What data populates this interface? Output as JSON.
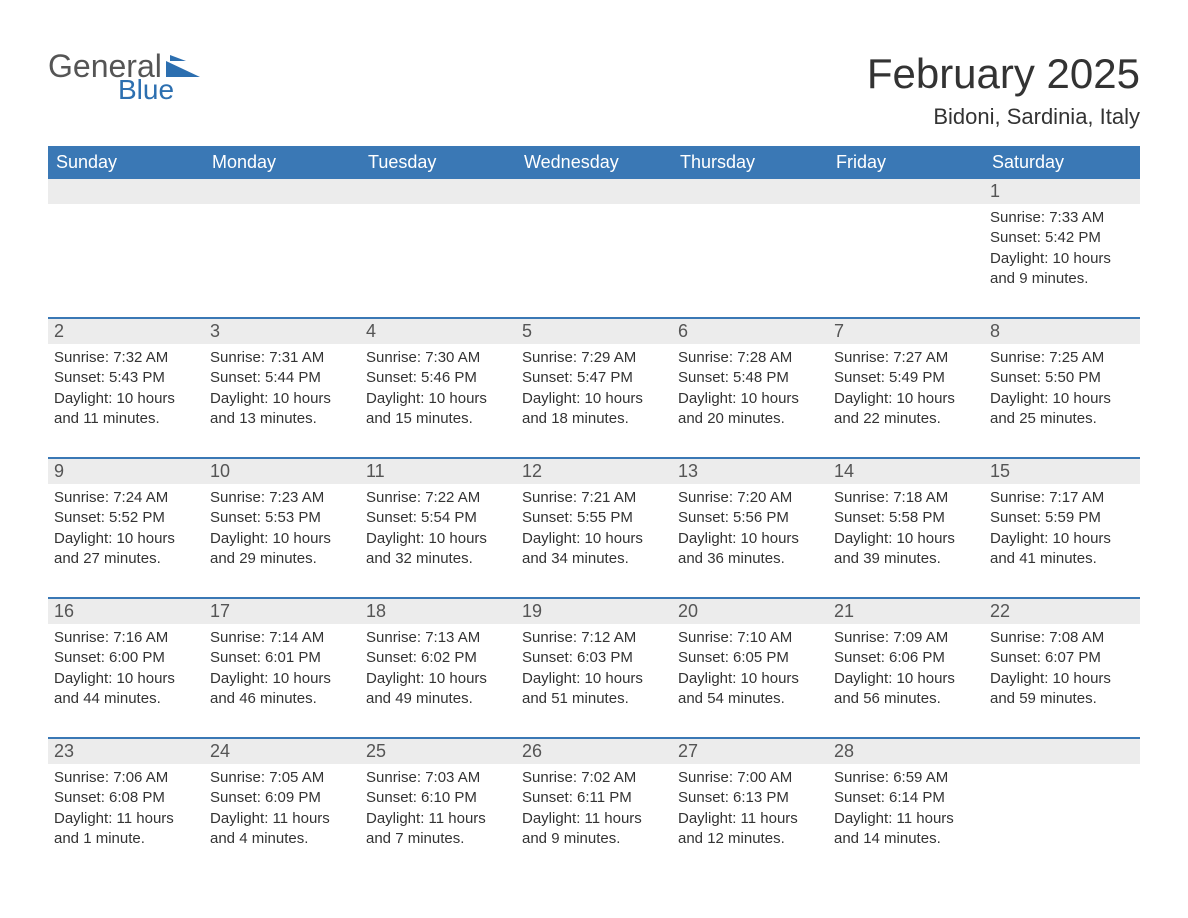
{
  "logo": {
    "text1": "General",
    "text2": "Blue",
    "shape_color": "#2c6fb0"
  },
  "title": "February 2025",
  "location": "Bidoni, Sardinia, Italy",
  "colors": {
    "header_bg": "#3a78b5",
    "header_text": "#ffffff",
    "daynum_bg": "#ececec",
    "daynum_text": "#555555",
    "body_text": "#333333",
    "separator": "#3a78b5"
  },
  "day_headers": [
    "Sunday",
    "Monday",
    "Tuesday",
    "Wednesday",
    "Thursday",
    "Friday",
    "Saturday"
  ],
  "weeks": [
    [
      null,
      null,
      null,
      null,
      null,
      null,
      {
        "n": "1",
        "sunrise": "Sunrise: 7:33 AM",
        "sunset": "Sunset: 5:42 PM",
        "daylight": "Daylight: 10 hours and 9 minutes."
      }
    ],
    [
      {
        "n": "2",
        "sunrise": "Sunrise: 7:32 AM",
        "sunset": "Sunset: 5:43 PM",
        "daylight": "Daylight: 10 hours and 11 minutes."
      },
      {
        "n": "3",
        "sunrise": "Sunrise: 7:31 AM",
        "sunset": "Sunset: 5:44 PM",
        "daylight": "Daylight: 10 hours and 13 minutes."
      },
      {
        "n": "4",
        "sunrise": "Sunrise: 7:30 AM",
        "sunset": "Sunset: 5:46 PM",
        "daylight": "Daylight: 10 hours and 15 minutes."
      },
      {
        "n": "5",
        "sunrise": "Sunrise: 7:29 AM",
        "sunset": "Sunset: 5:47 PM",
        "daylight": "Daylight: 10 hours and 18 minutes."
      },
      {
        "n": "6",
        "sunrise": "Sunrise: 7:28 AM",
        "sunset": "Sunset: 5:48 PM",
        "daylight": "Daylight: 10 hours and 20 minutes."
      },
      {
        "n": "7",
        "sunrise": "Sunrise: 7:27 AM",
        "sunset": "Sunset: 5:49 PM",
        "daylight": "Daylight: 10 hours and 22 minutes."
      },
      {
        "n": "8",
        "sunrise": "Sunrise: 7:25 AM",
        "sunset": "Sunset: 5:50 PM",
        "daylight": "Daylight: 10 hours and 25 minutes."
      }
    ],
    [
      {
        "n": "9",
        "sunrise": "Sunrise: 7:24 AM",
        "sunset": "Sunset: 5:52 PM",
        "daylight": "Daylight: 10 hours and 27 minutes."
      },
      {
        "n": "10",
        "sunrise": "Sunrise: 7:23 AM",
        "sunset": "Sunset: 5:53 PM",
        "daylight": "Daylight: 10 hours and 29 minutes."
      },
      {
        "n": "11",
        "sunrise": "Sunrise: 7:22 AM",
        "sunset": "Sunset: 5:54 PM",
        "daylight": "Daylight: 10 hours and 32 minutes."
      },
      {
        "n": "12",
        "sunrise": "Sunrise: 7:21 AM",
        "sunset": "Sunset: 5:55 PM",
        "daylight": "Daylight: 10 hours and 34 minutes."
      },
      {
        "n": "13",
        "sunrise": "Sunrise: 7:20 AM",
        "sunset": "Sunset: 5:56 PM",
        "daylight": "Daylight: 10 hours and 36 minutes."
      },
      {
        "n": "14",
        "sunrise": "Sunrise: 7:18 AM",
        "sunset": "Sunset: 5:58 PM",
        "daylight": "Daylight: 10 hours and 39 minutes."
      },
      {
        "n": "15",
        "sunrise": "Sunrise: 7:17 AM",
        "sunset": "Sunset: 5:59 PM",
        "daylight": "Daylight: 10 hours and 41 minutes."
      }
    ],
    [
      {
        "n": "16",
        "sunrise": "Sunrise: 7:16 AM",
        "sunset": "Sunset: 6:00 PM",
        "daylight": "Daylight: 10 hours and 44 minutes."
      },
      {
        "n": "17",
        "sunrise": "Sunrise: 7:14 AM",
        "sunset": "Sunset: 6:01 PM",
        "daylight": "Daylight: 10 hours and 46 minutes."
      },
      {
        "n": "18",
        "sunrise": "Sunrise: 7:13 AM",
        "sunset": "Sunset: 6:02 PM",
        "daylight": "Daylight: 10 hours and 49 minutes."
      },
      {
        "n": "19",
        "sunrise": "Sunrise: 7:12 AM",
        "sunset": "Sunset: 6:03 PM",
        "daylight": "Daylight: 10 hours and 51 minutes."
      },
      {
        "n": "20",
        "sunrise": "Sunrise: 7:10 AM",
        "sunset": "Sunset: 6:05 PM",
        "daylight": "Daylight: 10 hours and 54 minutes."
      },
      {
        "n": "21",
        "sunrise": "Sunrise: 7:09 AM",
        "sunset": "Sunset: 6:06 PM",
        "daylight": "Daylight: 10 hours and 56 minutes."
      },
      {
        "n": "22",
        "sunrise": "Sunrise: 7:08 AM",
        "sunset": "Sunset: 6:07 PM",
        "daylight": "Daylight: 10 hours and 59 minutes."
      }
    ],
    [
      {
        "n": "23",
        "sunrise": "Sunrise: 7:06 AM",
        "sunset": "Sunset: 6:08 PM",
        "daylight": "Daylight: 11 hours and 1 minute."
      },
      {
        "n": "24",
        "sunrise": "Sunrise: 7:05 AM",
        "sunset": "Sunset: 6:09 PM",
        "daylight": "Daylight: 11 hours and 4 minutes."
      },
      {
        "n": "25",
        "sunrise": "Sunrise: 7:03 AM",
        "sunset": "Sunset: 6:10 PM",
        "daylight": "Daylight: 11 hours and 7 minutes."
      },
      {
        "n": "26",
        "sunrise": "Sunrise: 7:02 AM",
        "sunset": "Sunset: 6:11 PM",
        "daylight": "Daylight: 11 hours and 9 minutes."
      },
      {
        "n": "27",
        "sunrise": "Sunrise: 7:00 AM",
        "sunset": "Sunset: 6:13 PM",
        "daylight": "Daylight: 11 hours and 12 minutes."
      },
      {
        "n": "28",
        "sunrise": "Sunrise: 6:59 AM",
        "sunset": "Sunset: 6:14 PM",
        "daylight": "Daylight: 11 hours and 14 minutes."
      },
      null
    ]
  ]
}
